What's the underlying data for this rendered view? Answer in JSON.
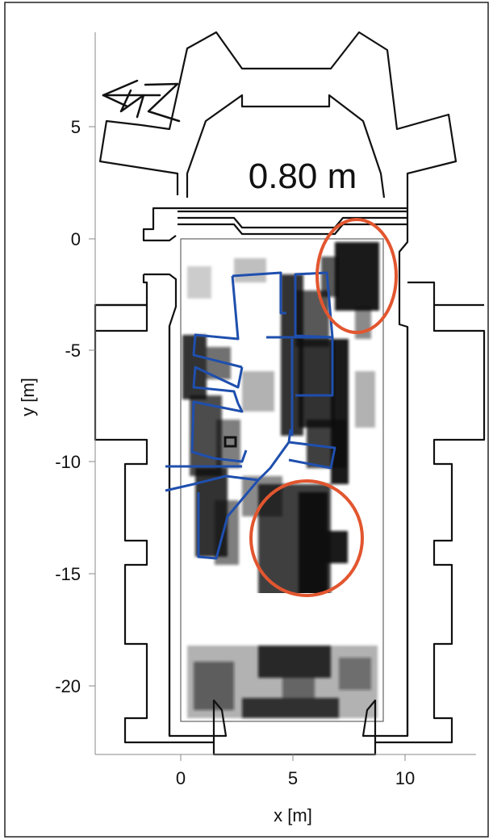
{
  "plot": {
    "depth_label": "0.80 m",
    "xlabel": "x [m]",
    "ylabel": "y [m]",
    "xticks": [
      0,
      5,
      10
    ],
    "yticks": [
      5,
      0,
      -5,
      -10,
      -15,
      -20
    ],
    "xlim": [
      -4,
      13
    ],
    "ylim": [
      -23,
      9.5
    ],
    "north_arrow": "north-arrow-icon"
  },
  "colors": {
    "building_outline": "#111111",
    "wall_features": "#1f4fae",
    "highlight": "#e2562f",
    "radar_dark": "#111111"
  },
  "map_data": {
    "radar_survey_extent": {
      "x": [
        0,
        9
      ],
      "y": [
        -21.5,
        0
      ]
    },
    "highlight_ellipses": [
      {
        "name": "anomaly-north",
        "cx": 8.1,
        "cy": -1.7,
        "rx": 1.7,
        "ry": 4.1
      },
      {
        "name": "anomaly-central",
        "cx": 5.7,
        "cy": -13.5,
        "rx": 4.2,
        "ry": 4.0
      }
    ]
  }
}
